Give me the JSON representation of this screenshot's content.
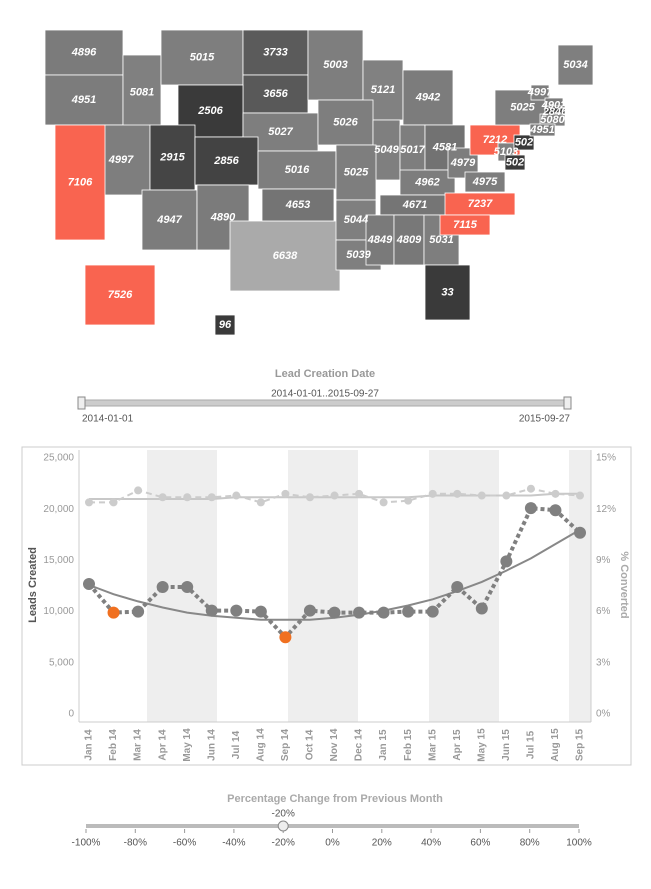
{
  "map": {
    "values": [
      4896,
      4951,
      5081,
      5015,
      3733,
      3656,
      2506,
      5027,
      4997,
      2915,
      2856,
      7106,
      4947,
      4890,
      6638,
      5016,
      4653,
      5003,
      5121,
      5026,
      5049,
      5025,
      5044,
      5039,
      4942,
      5017,
      4581,
      4962,
      4671,
      4849,
      4809,
      5031,
      33,
      4979,
      4975,
      7237,
      7115,
      7212,
      5025,
      5103,
      502,
      502,
      5034,
      4997,
      4902,
      2846,
      5080,
      4951,
      7526,
      96
    ]
  },
  "date_filter": {
    "title": "Lead Creation Date",
    "range_label": "2014-01-01..2015-09-27",
    "start": "2014-01-01",
    "end": "2015-09-27"
  },
  "chart_data": {
    "type": "line",
    "categories": [
      "Jan 14",
      "Feb 14",
      "Mar 14",
      "Apr 14",
      "May 14",
      "Jun 14",
      "Jul 14",
      "Aug 14",
      "Sep 14",
      "Oct 14",
      "Nov 14",
      "Dec 14",
      "Jan 15",
      "Feb 15",
      "Mar 15",
      "Apr 15",
      "May 15",
      "Jun 15",
      "Jul 15",
      "Aug 15",
      "Sep 15"
    ],
    "y_label": "Leads Created",
    "y2_label": "% Converted",
    "ylim": [
      0,
      25000
    ],
    "yticks": [
      0,
      {
        "value": 5000,
        "label": "5,000"
      },
      {
        "value": 10000,
        "label": "10,000"
      },
      {
        "value": 15000,
        "label": "15,000"
      },
      {
        "value": 20000,
        "label": "20,000"
      },
      {
        "value": 25000,
        "label": "25,000"
      }
    ],
    "y2lim": [
      0,
      15
    ],
    "y2ticks": [
      {
        "value": 0,
        "label": "0%"
      },
      {
        "value": 3,
        "label": "3%"
      },
      {
        "value": 6,
        "label": "6%"
      },
      {
        "value": 9,
        "label": "9%"
      },
      {
        "value": 12,
        "label": "12%"
      },
      {
        "value": 15,
        "label": "15%"
      }
    ],
    "series": [
      {
        "axis": "y2",
        "color": "#c8c8c8",
        "line_style": "solid",
        "markers": false,
        "values": [
          12.6,
          12.6,
          12.6,
          12.6,
          12.6,
          12.6,
          12.7,
          12.7,
          12.7,
          12.7,
          12.7,
          12.7,
          12.7,
          12.7,
          12.8,
          12.8,
          12.8,
          12.8,
          12.8,
          12.9,
          12.9
        ]
      },
      {
        "axis": "y2",
        "color": "#cccccc",
        "line_style": "dashed",
        "markers": true,
        "values": [
          12.4,
          12.4,
          13.1,
          12.7,
          12.7,
          12.7,
          12.8,
          12.4,
          12.9,
          12.7,
          12.8,
          12.9,
          12.4,
          12.5,
          12.9,
          12.9,
          12.8,
          12.8,
          13.2,
          12.9,
          12.8
        ]
      },
      {
        "axis": "y",
        "color": "#888888",
        "line_style": "solid",
        "markers": false,
        "values": [
          12600,
          11700,
          11000,
          10400,
          9900,
          9600,
          9400,
          9200,
          9200,
          9200,
          9400,
          9700,
          10100,
          10600,
          11200,
          12000,
          12900,
          14000,
          15200,
          16600,
          18000
        ]
      },
      {
        "axis": "y",
        "color": "#808080",
        "line_style": "dotted",
        "markers": true,
        "values": [
          12700,
          9900,
          10000,
          12400,
          12400,
          10100,
          10100,
          10000,
          7500,
          10100,
          9900,
          9900,
          9900,
          10000,
          10000,
          12400,
          10300,
          14900,
          20100,
          19900,
          17700
        ],
        "point_colors": [
          "#808080",
          "#f07020",
          "#808080",
          "#808080",
          "#808080",
          "#808080",
          "#808080",
          "#808080",
          "#f07020",
          "#808080",
          "#808080",
          "#808080",
          "#808080",
          "#808080",
          "#808080",
          "#808080",
          "#808080",
          "#808080",
          "#808080",
          "#808080",
          "#808080"
        ]
      }
    ]
  },
  "change_filter": {
    "title": "Percentage Change from Previous Month",
    "value": {
      "value": -20,
      "label": "-20%"
    },
    "xlim": [
      -100,
      100
    ],
    "ticks": [
      {
        "value": -100,
        "label": "-100%"
      },
      {
        "value": -80,
        "label": "-80%"
      },
      {
        "value": -60,
        "label": "-60%"
      },
      {
        "value": -40,
        "label": "-40%"
      },
      {
        "value": -20,
        "label": "-20%"
      },
      {
        "value": 0,
        "label": "0%"
      },
      {
        "value": 20,
        "label": "20%"
      },
      {
        "value": 40,
        "label": "40%"
      },
      {
        "value": 60,
        "label": "60%"
      },
      {
        "value": 80,
        "label": "80%"
      },
      {
        "value": 100,
        "label": "100%"
      }
    ]
  }
}
